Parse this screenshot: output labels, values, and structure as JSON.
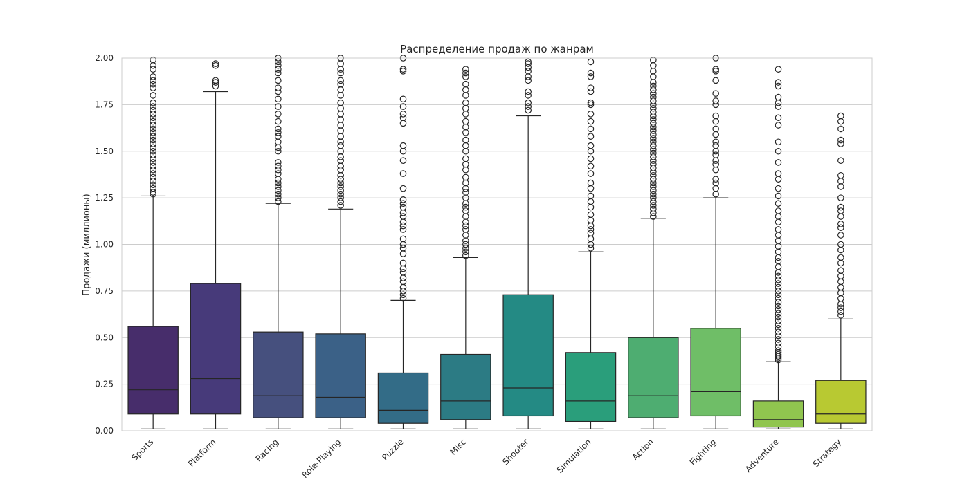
{
  "chart_data": {
    "type": "box",
    "title": "Распределение продаж по жанрам",
    "xlabel": "",
    "ylabel": "Продажи (миллионы)",
    "ylim": [
      0,
      2.0
    ],
    "yticks": [
      "0.00",
      "0.25",
      "0.50",
      "0.75",
      "1.00",
      "1.25",
      "1.50",
      "1.75",
      "2.00"
    ],
    "ytick_values": [
      0,
      0.25,
      0.5,
      0.75,
      1.0,
      1.25,
      1.5,
      1.75,
      2.0
    ],
    "grid": true,
    "categories": [
      "Sports",
      "Platform",
      "Racing",
      "Role-Playing",
      "Puzzle",
      "Misc",
      "Shooter",
      "Simulation",
      "Action",
      "Fighting",
      "Adventure",
      "Strategy"
    ],
    "boxes": [
      {
        "category": "Sports",
        "color": "#472d6b",
        "min": 0.01,
        "q1": 0.09,
        "median": 0.22,
        "q3": 0.56,
        "whisker_high": 1.26,
        "outliers": [
          1.27,
          1.28,
          1.3,
          1.32,
          1.34,
          1.36,
          1.38,
          1.4,
          1.42,
          1.44,
          1.46,
          1.48,
          1.5,
          1.52,
          1.54,
          1.56,
          1.58,
          1.6,
          1.62,
          1.64,
          1.66,
          1.68,
          1.7,
          1.72,
          1.74,
          1.76,
          1.8,
          1.84,
          1.86,
          1.88,
          1.9,
          1.94,
          1.96,
          1.99
        ]
      },
      {
        "category": "Platform",
        "color": "#473a7a",
        "min": 0.01,
        "q1": 0.09,
        "median": 0.28,
        "q3": 0.79,
        "whisker_high": 1.82,
        "outliers": [
          1.85,
          1.87,
          1.88,
          1.96,
          1.97
        ]
      },
      {
        "category": "Racing",
        "color": "#46507e",
        "min": 0.01,
        "q1": 0.07,
        "median": 0.19,
        "q3": 0.53,
        "whisker_high": 1.22,
        "outliers": [
          1.23,
          1.25,
          1.27,
          1.29,
          1.31,
          1.33,
          1.35,
          1.38,
          1.4,
          1.42,
          1.44,
          1.5,
          1.52,
          1.55,
          1.58,
          1.6,
          1.62,
          1.66,
          1.7,
          1.74,
          1.78,
          1.82,
          1.84,
          1.88,
          1.92,
          1.94,
          1.96,
          1.98,
          2.0
        ]
      },
      {
        "category": "Role-Playing",
        "color": "#3b6187",
        "min": 0.01,
        "q1": 0.07,
        "median": 0.18,
        "q3": 0.52,
        "whisker_high": 1.19,
        "outliers": [
          1.21,
          1.23,
          1.25,
          1.27,
          1.29,
          1.31,
          1.33,
          1.35,
          1.37,
          1.4,
          1.42,
          1.45,
          1.47,
          1.5,
          1.53,
          1.55,
          1.58,
          1.61,
          1.64,
          1.67,
          1.7,
          1.73,
          1.76,
          1.8,
          1.83,
          1.86,
          1.88,
          1.92,
          1.94,
          1.97,
          2.0
        ]
      },
      {
        "category": "Puzzle",
        "color": "#336c87",
        "min": 0.01,
        "q1": 0.04,
        "median": 0.11,
        "q3": 0.31,
        "whisker_high": 0.7,
        "outliers": [
          0.71,
          0.73,
          0.75,
          0.77,
          0.8,
          0.82,
          0.85,
          0.87,
          0.9,
          0.95,
          0.98,
          1.0,
          1.03,
          1.08,
          1.1,
          1.12,
          1.15,
          1.17,
          1.2,
          1.22,
          1.24,
          1.3,
          1.38,
          1.45,
          1.5,
          1.53,
          1.65,
          1.68,
          1.7,
          1.74,
          1.78,
          1.93,
          1.94,
          2.0
        ]
      },
      {
        "category": "Misc",
        "color": "#2c7b84",
        "min": 0.01,
        "q1": 0.06,
        "median": 0.16,
        "q3": 0.41,
        "whisker_high": 0.93,
        "outliers": [
          0.94,
          0.96,
          0.98,
          1.0,
          1.02,
          1.05,
          1.08,
          1.1,
          1.12,
          1.15,
          1.18,
          1.2,
          1.22,
          1.25,
          1.28,
          1.3,
          1.33,
          1.36,
          1.4,
          1.43,
          1.46,
          1.5,
          1.53,
          1.56,
          1.6,
          1.63,
          1.66,
          1.7,
          1.73,
          1.76,
          1.8,
          1.83,
          1.86,
          1.9,
          1.92,
          1.94
        ]
      },
      {
        "category": "Shooter",
        "color": "#248a84",
        "min": 0.01,
        "q1": 0.08,
        "median": 0.23,
        "q3": 0.73,
        "whisker_high": 1.69,
        "outliers": [
          1.72,
          1.74,
          1.76,
          1.8,
          1.82,
          1.88,
          1.9,
          1.93,
          1.95,
          1.97,
          1.98
        ]
      },
      {
        "category": "Simulation",
        "color": "#2a9e7b",
        "min": 0.01,
        "q1": 0.05,
        "median": 0.16,
        "q3": 0.42,
        "whisker_high": 0.96,
        "outliers": [
          0.98,
          1.0,
          1.03,
          1.06,
          1.08,
          1.1,
          1.13,
          1.16,
          1.2,
          1.23,
          1.26,
          1.3,
          1.33,
          1.38,
          1.42,
          1.46,
          1.5,
          1.53,
          1.58,
          1.62,
          1.66,
          1.7,
          1.75,
          1.76,
          1.82,
          1.84,
          1.9,
          1.92,
          1.98
        ]
      },
      {
        "category": "Action",
        "color": "#4ead71",
        "min": 0.01,
        "q1": 0.07,
        "median": 0.19,
        "q3": 0.5,
        "whisker_high": 1.14,
        "outliers": [
          1.15,
          1.17,
          1.19,
          1.21,
          1.23,
          1.25,
          1.27,
          1.29,
          1.31,
          1.33,
          1.35,
          1.37,
          1.39,
          1.41,
          1.43,
          1.45,
          1.47,
          1.49,
          1.51,
          1.53,
          1.55,
          1.57,
          1.59,
          1.61,
          1.63,
          1.65,
          1.67,
          1.69,
          1.71,
          1.73,
          1.75,
          1.77,
          1.79,
          1.81,
          1.83,
          1.85,
          1.87,
          1.9,
          1.93,
          1.96,
          1.99
        ]
      },
      {
        "category": "Fighting",
        "color": "#6fbe67",
        "min": 0.01,
        "q1": 0.08,
        "median": 0.21,
        "q3": 0.55,
        "whisker_high": 1.25,
        "outliers": [
          1.27,
          1.3,
          1.33,
          1.35,
          1.4,
          1.43,
          1.45,
          1.48,
          1.5,
          1.53,
          1.55,
          1.59,
          1.62,
          1.66,
          1.69,
          1.75,
          1.77,
          1.81,
          1.88,
          1.93,
          1.94,
          2.0
        ]
      },
      {
        "category": "Adventure",
        "color": "#90c54f",
        "min": 0.01,
        "q1": 0.02,
        "median": 0.06,
        "q3": 0.16,
        "whisker_high": 0.37,
        "outliers": [
          0.38,
          0.39,
          0.4,
          0.41,
          0.42,
          0.43,
          0.45,
          0.47,
          0.49,
          0.51,
          0.53,
          0.55,
          0.57,
          0.59,
          0.61,
          0.63,
          0.65,
          0.67,
          0.69,
          0.71,
          0.73,
          0.75,
          0.77,
          0.79,
          0.81,
          0.83,
          0.85,
          0.88,
          0.91,
          0.93,
          0.96,
          0.99,
          1.02,
          1.05,
          1.08,
          1.12,
          1.15,
          1.18,
          1.22,
          1.26,
          1.3,
          1.35,
          1.38,
          1.44,
          1.5,
          1.55,
          1.64,
          1.68,
          1.74,
          1.76,
          1.79,
          1.85,
          1.87,
          1.94
        ]
      },
      {
        "category": "Strategy",
        "color": "#b8c932",
        "min": 0.01,
        "q1": 0.04,
        "median": 0.09,
        "q3": 0.27,
        "whisker_high": 0.6,
        "outliers": [
          0.62,
          0.64,
          0.66,
          0.68,
          0.71,
          0.74,
          0.77,
          0.8,
          0.83,
          0.86,
          0.9,
          0.93,
          0.97,
          1.0,
          1.05,
          1.09,
          1.11,
          1.15,
          1.18,
          1.2,
          1.25,
          1.31,
          1.34,
          1.37,
          1.45,
          1.54,
          1.56,
          1.62,
          1.66,
          1.69
        ]
      }
    ]
  }
}
